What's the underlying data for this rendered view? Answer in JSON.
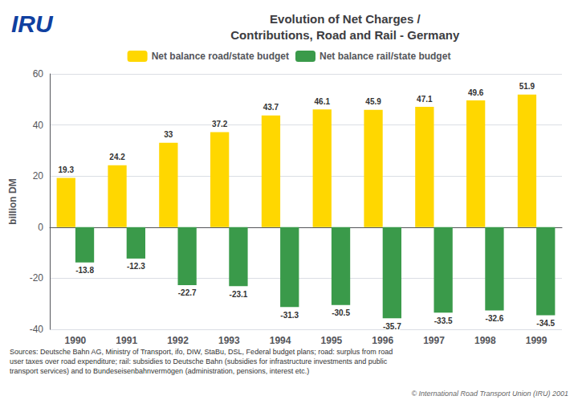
{
  "chart_data": {
    "type": "bar",
    "title": "Evolution of Net Charges /\nContributions, Road and Rail - Germany",
    "categories": [
      "1990",
      "1991",
      "1992",
      "1993",
      "1994",
      "1995",
      "1996",
      "1997",
      "1998",
      "1999"
    ],
    "series": [
      {
        "name": "Net balance road/state budget",
        "color": "#FFD700",
        "values": [
          19.3,
          24.2,
          33.0,
          37.2,
          43.7,
          46.1,
          45.9,
          47.1,
          49.6,
          51.9
        ]
      },
      {
        "name": "Net balance rail/state budget",
        "color": "#3a9a4a",
        "values": [
          -13.8,
          -12.3,
          -22.7,
          -23.1,
          -31.3,
          -30.5,
          -35.7,
          -33.5,
          -32.6,
          -34.5
        ]
      }
    ],
    "ylabel": "billion DM",
    "ylim": [
      -40,
      60
    ],
    "yticks": [
      -40,
      -20,
      0,
      20,
      40,
      60
    ],
    "grid": true,
    "legend": "top",
    "data_labels": true,
    "annotations": [
      "IRU",
      "Sources: Deutsche Bahn AG, Ministry of Transport, ifo, DIW, StaBu, DSL, Federal budget plans; road: surplus from road\nuser taxes over road expenditure; rail: subsidies to Deutsche Bahn (subsidies for infrastructure investments and public\ntransport services) and to Bundeseisenbahnvermögen (administration, pensions, interest etc.)",
      "© International Road Transport Union (IRU) 2001"
    ]
  }
}
